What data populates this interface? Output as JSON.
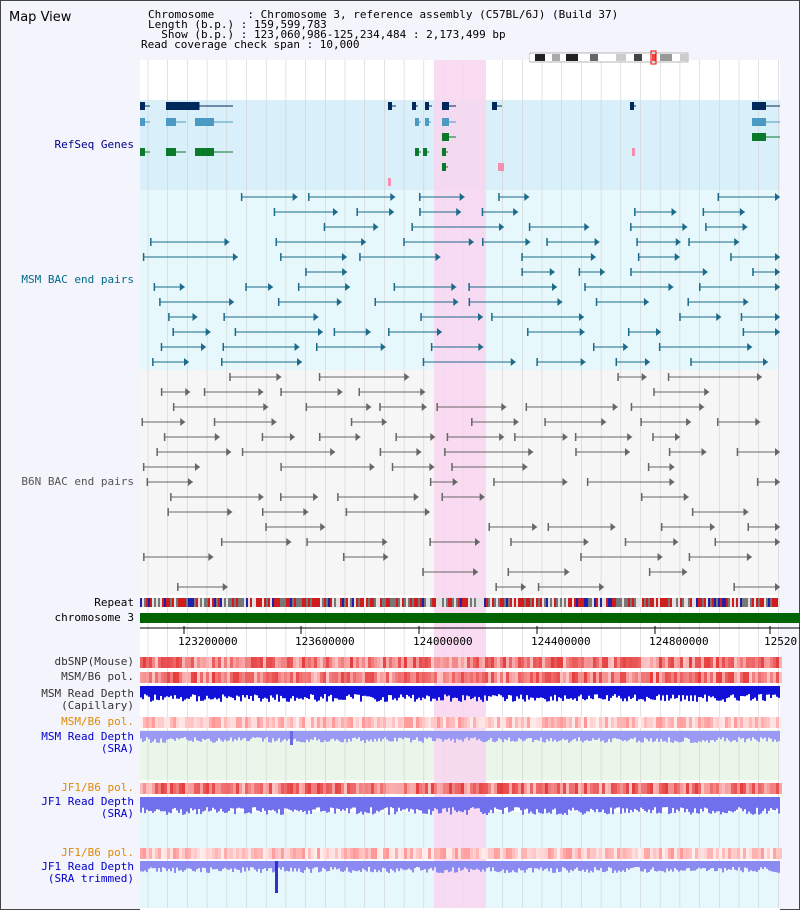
{
  "header": {
    "title": "Map View",
    "chromosome_line": "Chromosome     : Chromosome 3, reference assembly (C57BL/6J) (Build 37)",
    "length_line": "Length (b.p.) : 159,599,783",
    "show_line": "  Show (b.p.) : 123,060,986-125,234,484 : 2,173,499 bp",
    "coverage_line": "Read coverage check span : 10,000"
  },
  "tracks": {
    "refseq": "RefSeq Genes",
    "msm_bac": "MSM BAC end pairs",
    "b6n_bac": "B6N BAC end pairs",
    "repeat": "Repeat",
    "chromosome": "chromosome 3",
    "dbsnp": "dbSNP(Mouse)",
    "msm_b6_pol_1": "MSM/B6 pol.",
    "msm_depth_cap": "MSM Read Depth\n(Capillary)",
    "msm_b6_pol_2": "MSM/B6 pol.",
    "msm_depth_sra": "MSM Read Depth\n(SRA)",
    "jf1_b6_pol_1": "JF1/B6 pol.",
    "jf1_depth_sra": "JF1 Read Depth\n(SRA)",
    "jf1_b6_pol_2": "JF1/B6 pol.",
    "jf1_depth_trim": "JF1 Read Depth\n(SRA trimmed)"
  },
  "axis": {
    "ticks": [
      "123200000",
      "123600000",
      "124000000",
      "124400000",
      "124800000",
      "12520"
    ]
  },
  "colors": {
    "refseq_label": "#00008b",
    "msm_label": "#006a8a",
    "b6n_label": "#555555",
    "orange_label": "#e08a00",
    "blue_label": "#0000cc",
    "highlight": "#f8d6f0",
    "chromosome_bar": "#006400"
  }
}
